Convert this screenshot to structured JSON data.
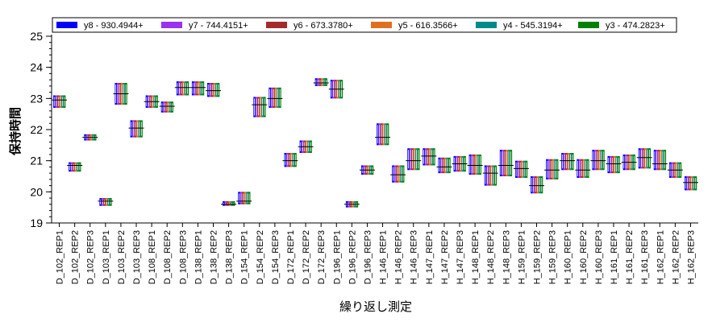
{
  "chart_data": {
    "type": "box",
    "title": "",
    "xlabel": "繰り返し測定",
    "ylabel": "保持時間",
    "ylim": [
      19,
      25
    ],
    "yticks": [
      19,
      20,
      21,
      22,
      23,
      24,
      25
    ],
    "grid": false,
    "legend_position": "top",
    "categories": [
      "D_102_REP1",
      "D_102_REP2",
      "D_102_REP3",
      "D_103_REP1",
      "D_103_REP2",
      "D_103_REP3",
      "D_108_REP1",
      "D_108_REP2",
      "D_108_REP3",
      "D_138_REP1",
      "D_138_REP2",
      "D_138_REP3",
      "D_154_REP1",
      "D_154_REP2",
      "D_154_REP3",
      "D_172_REP1",
      "D_172_REP2",
      "D_172_REP3",
      "D_196_REP1",
      "D_196_REP2",
      "D_196_REP3",
      "H_146_REP1",
      "H_146_REP2",
      "H_146_REP3",
      "H_147_REP1",
      "H_147_REP2",
      "H_147_REP3",
      "H_148_REP1",
      "H_148_REP2",
      "H_148_REP3",
      "H_159_REP1",
      "H_159_REP2",
      "H_159_REP3",
      "H_160_REP1",
      "H_160_REP2",
      "H_160_REP3",
      "H_161_REP1",
      "H_161_REP2",
      "H_161_REP3",
      "H_162_REP1",
      "H_162_REP2",
      "H_162_REP3"
    ],
    "series": [
      {
        "name": "y8 - 930.4944+",
        "color": "#0000ff"
      },
      {
        "name": "y7 - 744.4151+",
        "color": "#9b30f0"
      },
      {
        "name": "y6 - 673.3780+",
        "color": "#a52a2a"
      },
      {
        "name": "y5 - 616.3566+",
        "color": "#e07020"
      },
      {
        "name": "y4 - 545.3194+",
        "color": "#008b8b"
      },
      {
        "name": "y3 - 474.2823+",
        "color": "#008000"
      }
    ],
    "boxes": [
      {
        "category": "D_102_REP1",
        "low": 22.7,
        "high": 23.1,
        "median": 22.95
      },
      {
        "category": "D_102_REP2",
        "low": 20.65,
        "high": 20.95,
        "median": 20.85
      },
      {
        "category": "D_102_REP3",
        "low": 21.65,
        "high": 21.85,
        "median": 21.75
      },
      {
        "category": "D_103_REP1",
        "low": 19.55,
        "high": 19.8,
        "median": 19.7
      },
      {
        "category": "D_103_REP2",
        "low": 22.8,
        "high": 23.5,
        "median": 23.15
      },
      {
        "category": "D_103_REP3",
        "low": 21.75,
        "high": 22.3,
        "median": 22.05
      },
      {
        "category": "D_108_REP1",
        "low": 22.7,
        "high": 23.1,
        "median": 22.9
      },
      {
        "category": "D_108_REP2",
        "low": 22.55,
        "high": 22.9,
        "median": 22.75
      },
      {
        "category": "D_108_REP3",
        "low": 23.1,
        "high": 23.55,
        "median": 23.35
      },
      {
        "category": "D_138_REP1",
        "low": 23.1,
        "high": 23.55,
        "median": 23.35
      },
      {
        "category": "D_138_REP2",
        "low": 23.05,
        "high": 23.5,
        "median": 23.25
      },
      {
        "category": "D_138_REP3",
        "low": 19.55,
        "high": 19.7,
        "median": 19.6
      },
      {
        "category": "D_154_REP1",
        "low": 19.6,
        "high": 20.0,
        "median": 19.7
      },
      {
        "category": "D_154_REP2",
        "low": 22.4,
        "high": 23.05,
        "median": 22.8
      },
      {
        "category": "D_154_REP3",
        "low": 22.7,
        "high": 23.35,
        "median": 23.0
      },
      {
        "category": "D_172_REP1",
        "low": 20.8,
        "high": 21.25,
        "median": 21.0
      },
      {
        "category": "D_172_REP2",
        "low": 21.25,
        "high": 21.65,
        "median": 21.45
      },
      {
        "category": "D_172_REP3",
        "low": 23.4,
        "high": 23.65,
        "median": 23.5
      },
      {
        "category": "D_196_REP1",
        "low": 23.0,
        "high": 23.6,
        "median": 23.3
      },
      {
        "category": "D_196_REP2",
        "low": 19.5,
        "high": 19.7,
        "median": 19.6
      },
      {
        "category": "D_196_REP3",
        "low": 20.55,
        "high": 20.85,
        "median": 20.7
      },
      {
        "category": "H_146_REP1",
        "low": 21.5,
        "high": 22.2,
        "median": 21.75
      },
      {
        "category": "H_146_REP2",
        "low": 20.3,
        "high": 20.85,
        "median": 20.55
      },
      {
        "category": "H_146_REP3",
        "low": 20.7,
        "high": 21.4,
        "median": 21.0
      },
      {
        "category": "H_147_REP1",
        "low": 20.85,
        "high": 21.4,
        "median": 21.15
      },
      {
        "category": "H_147_REP2",
        "low": 20.6,
        "high": 21.1,
        "median": 20.8
      },
      {
        "category": "H_147_REP3",
        "low": 20.65,
        "high": 21.15,
        "median": 20.9
      },
      {
        "category": "H_148_REP1",
        "low": 20.55,
        "high": 21.2,
        "median": 20.85
      },
      {
        "category": "H_148_REP2",
        "low": 20.2,
        "high": 20.85,
        "median": 20.6
      },
      {
        "category": "H_148_REP3",
        "low": 20.5,
        "high": 21.35,
        "median": 20.85
      },
      {
        "category": "H_159_REP1",
        "low": 20.45,
        "high": 21.0,
        "median": 20.75
      },
      {
        "category": "H_159_REP2",
        "low": 19.95,
        "high": 20.5,
        "median": 20.2
      },
      {
        "category": "H_159_REP3",
        "low": 20.4,
        "high": 21.05,
        "median": 20.7
      },
      {
        "category": "H_160_REP1",
        "low": 20.7,
        "high": 21.25,
        "median": 21.0
      },
      {
        "category": "H_160_REP2",
        "low": 20.45,
        "high": 21.05,
        "median": 20.7
      },
      {
        "category": "H_160_REP3",
        "low": 20.7,
        "high": 21.35,
        "median": 21.0
      },
      {
        "category": "H_161_REP1",
        "low": 20.6,
        "high": 21.15,
        "median": 20.9
      },
      {
        "category": "H_161_REP2",
        "low": 20.7,
        "high": 21.2,
        "median": 20.95
      },
      {
        "category": "H_161_REP3",
        "low": 20.75,
        "high": 21.4,
        "median": 21.1
      },
      {
        "category": "H_162_REP1",
        "low": 20.7,
        "high": 21.35,
        "median": 20.9
      },
      {
        "category": "H_162_REP2",
        "low": 20.45,
        "high": 20.95,
        "median": 20.7
      },
      {
        "category": "H_162_REP3",
        "low": 20.05,
        "high": 20.5,
        "median": 20.3
      }
    ]
  }
}
